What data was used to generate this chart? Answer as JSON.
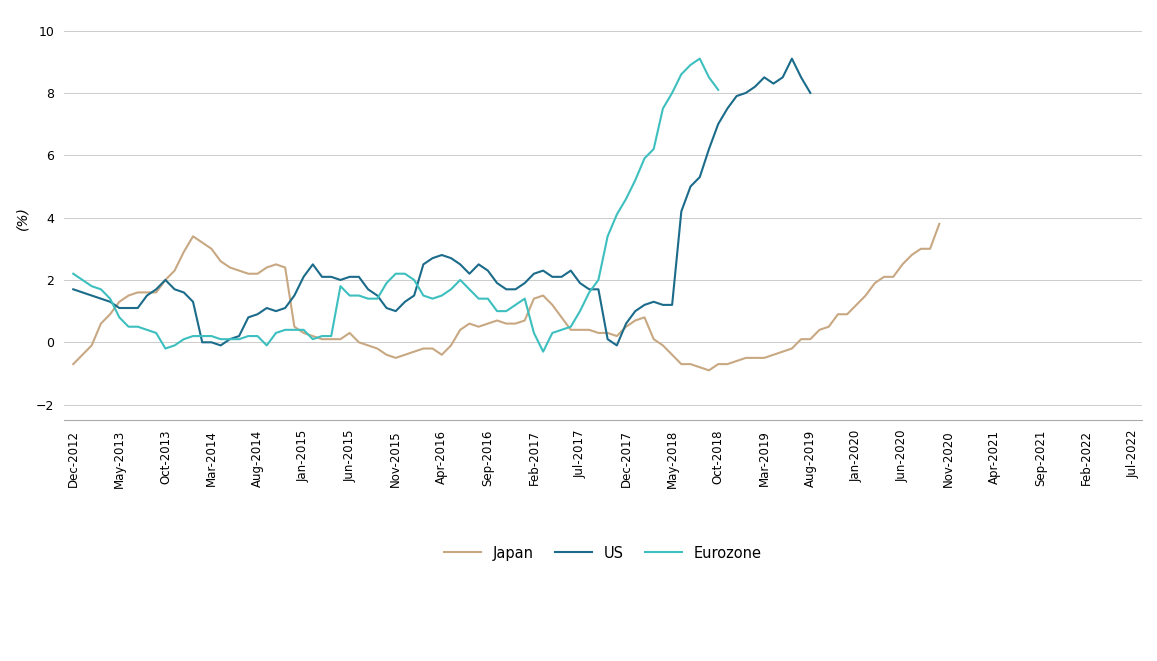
{
  "ylabel": "(%)",
  "ylim": [
    -2.5,
    10.5
  ],
  "yticks": [
    -2,
    0,
    2,
    4,
    6,
    8,
    10
  ],
  "x_labels": [
    "Dec-2012",
    "May-2013",
    "Oct-2013",
    "Mar-2014",
    "Aug-2014",
    "Jan-2015",
    "Jun-2015",
    "Nov-2015",
    "Apr-2016",
    "Sep-2016",
    "Feb-2017",
    "Jul-2017",
    "Dec-2017",
    "May-2018",
    "Oct-2018",
    "Mar-2019",
    "Aug-2019",
    "Jan-2020",
    "Jun-2020",
    "Nov-2020",
    "Apr-2021",
    "Sep-2021",
    "Feb-2022",
    "Jul-2022"
  ],
  "x_label_months": [
    0,
    5,
    10,
    15,
    20,
    25,
    30,
    35,
    40,
    45,
    50,
    55,
    60,
    65,
    70,
    75,
    80,
    85,
    90,
    95,
    100,
    105,
    110,
    115
  ],
  "japan_monthly": [
    -0.7,
    -0.4,
    -0.1,
    0.6,
    0.9,
    1.3,
    1.5,
    1.6,
    1.6,
    1.6,
    2.0,
    2.3,
    2.9,
    3.4,
    3.2,
    3.0,
    2.6,
    2.4,
    2.3,
    2.2,
    2.2,
    2.4,
    2.5,
    2.4,
    0.5,
    0.3,
    0.2,
    0.1,
    0.1,
    0.1,
    0.3,
    0.0,
    -0.1,
    -0.2,
    -0.4,
    -0.5,
    -0.4,
    -0.3,
    -0.2,
    -0.2,
    -0.4,
    -0.1,
    0.4,
    0.6,
    0.5,
    0.6,
    0.7,
    0.6,
    0.6,
    0.7,
    1.4,
    1.5,
    1.2,
    0.8,
    0.4,
    0.4,
    0.4,
    0.3,
    0.3,
    0.2,
    0.5,
    0.7,
    0.8,
    0.1,
    -0.1,
    -0.4,
    -0.7,
    -0.7,
    -0.8,
    -0.9,
    -0.7,
    -0.7,
    -0.6,
    -0.5,
    -0.5,
    -0.5,
    -0.4,
    -0.3,
    -0.2,
    0.1,
    0.1,
    0.4,
    0.5,
    0.9,
    0.9,
    1.2,
    1.5,
    1.9,
    2.1,
    2.1,
    2.5,
    2.8,
    3.0,
    3.0,
    3.8
  ],
  "us_monthly": [
    1.7,
    1.6,
    1.5,
    1.4,
    1.3,
    1.1,
    1.1,
    1.1,
    1.5,
    1.7,
    2.0,
    1.7,
    1.6,
    1.3,
    0.0,
    0.0,
    -0.1,
    0.1,
    0.2,
    0.8,
    0.9,
    1.1,
    1.0,
    1.1,
    1.5,
    2.1,
    2.5,
    2.1,
    2.1,
    2.0,
    2.1,
    2.1,
    1.7,
    1.5,
    1.1,
    1.0,
    1.3,
    1.5,
    2.5,
    2.7,
    2.8,
    2.7,
    2.5,
    2.2,
    2.5,
    2.3,
    1.9,
    1.7,
    1.7,
    1.9,
    2.2,
    2.3,
    2.1,
    2.1,
    2.3,
    1.9,
    1.7,
    1.7,
    0.1,
    -0.1,
    0.6,
    1.0,
    1.2,
    1.3,
    1.2,
    1.2,
    4.2,
    5.0,
    5.3,
    6.2,
    7.0,
    7.5,
    7.9,
    8.0,
    8.2,
    8.5,
    8.3,
    8.5,
    9.1,
    8.5,
    8.0
  ],
  "eurozone_monthly": [
    2.2,
    2.0,
    1.8,
    1.7,
    1.4,
    0.8,
    0.5,
    0.5,
    0.4,
    0.3,
    -0.2,
    -0.1,
    0.1,
    0.2,
    0.2,
    0.2,
    0.1,
    0.1,
    0.1,
    0.2,
    0.2,
    -0.1,
    0.3,
    0.4,
    0.4,
    0.4,
    0.1,
    0.2,
    0.2,
    1.8,
    1.5,
    1.5,
    1.4,
    1.4,
    1.9,
    2.2,
    2.2,
    2.0,
    1.5,
    1.4,
    1.5,
    1.7,
    2.0,
    1.7,
    1.4,
    1.4,
    1.0,
    1.0,
    1.2,
    1.4,
    0.3,
    -0.3,
    0.3,
    0.4,
    0.5,
    1.0,
    1.6,
    2.0,
    3.4,
    4.1,
    4.6,
    5.2,
    5.9,
    6.2,
    7.5,
    8.0,
    8.6,
    8.9,
    9.1,
    8.5,
    8.1
  ],
  "japan_color": "#C8A882",
  "us_color": "#1B6B8A",
  "eurozone_color": "#3DBFBF",
  "background_color": "#ffffff",
  "grid_color": "#cccccc",
  "legend_entries": [
    "Japan",
    "US",
    "Eurozone"
  ]
}
